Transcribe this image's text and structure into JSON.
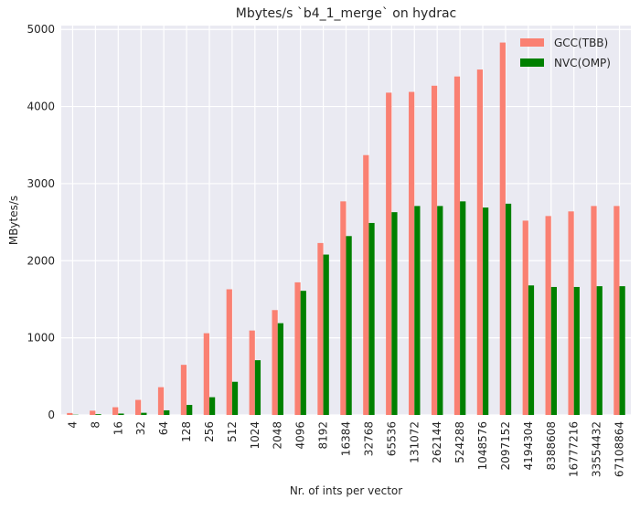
{
  "chart_data": {
    "type": "bar",
    "title": "Mbytes/s `b4_1_merge` on hydrac",
    "xlabel": "Nr. of ints per vector",
    "ylabel": "MBytes/s",
    "ylim": [
      0,
      5050
    ],
    "yticks": [
      0,
      1000,
      2000,
      3000,
      4000,
      5000
    ],
    "grid": true,
    "legend_position": "top-right",
    "categories": [
      "4",
      "8",
      "16",
      "32",
      "64",
      "128",
      "256",
      "512",
      "1024",
      "2048",
      "4096",
      "8192",
      "16384",
      "32768",
      "65536",
      "131072",
      "262144",
      "524288",
      "1048576",
      "2097152",
      "4194304",
      "8388608",
      "16777216",
      "33554432",
      "67108864"
    ],
    "series": [
      {
        "name": "GCC(TBB)",
        "color": "#fa8072",
        "values": [
          25,
          55,
          100,
          195,
          360,
          650,
          1060,
          1630,
          1095,
          1360,
          1720,
          2230,
          2770,
          3370,
          4180,
          4190,
          4270,
          4390,
          4480,
          4830,
          2520,
          2580,
          2640,
          2710,
          2710
        ]
      },
      {
        "name": "NVC(OMP)",
        "color": "#008000",
        "values": [
          3,
          10,
          18,
          28,
          60,
          130,
          230,
          430,
          710,
          1190,
          1610,
          2080,
          2320,
          2490,
          2630,
          2710,
          2710,
          2770,
          2690,
          2740,
          1680,
          1660,
          1660,
          1670,
          1670
        ]
      }
    ]
  }
}
